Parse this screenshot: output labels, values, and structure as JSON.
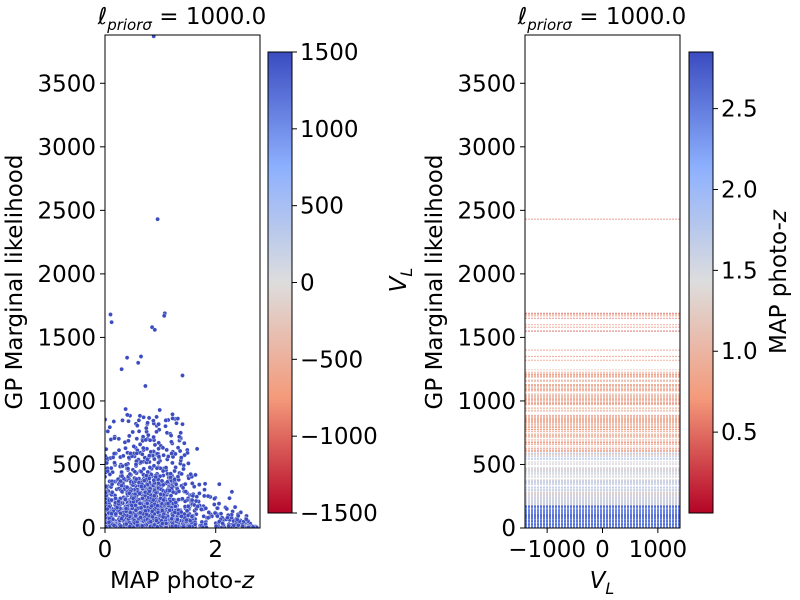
{
  "chart_data": [
    {
      "type": "scatter",
      "title_main": "ℓ",
      "title_sub": "priorσ",
      "title_tail": " = 1000.0",
      "xlabel_main": "MAP photo-",
      "xlabel_italic": "z",
      "ylabel": "GP Marginal likelihood",
      "xlim": [
        0,
        2.8
      ],
      "ylim": [
        0,
        3880
      ],
      "x_ticks": [
        0,
        2
      ],
      "x_tick_labels": [
        "0",
        "2"
      ],
      "y_ticks": [
        0,
        500,
        1000,
        1500,
        2000,
        2500,
        3000,
        3500
      ],
      "y_tick_labels": [
        "0",
        "500",
        "1000",
        "1500",
        "2000",
        "2500",
        "3000",
        "3500"
      ],
      "marker_color": "#3b4cc0",
      "outliers": [
        [
          0.1,
          1680
        ],
        [
          0.12,
          1620
        ],
        [
          0.85,
          1580
        ],
        [
          0.9,
          1560
        ],
        [
          1.08,
          1690
        ],
        [
          1.07,
          1670
        ],
        [
          0.95,
          2430
        ],
        [
          0.65,
          1350
        ],
        [
          0.4,
          1340
        ],
        [
          0.3,
          1250
        ],
        [
          0.6,
          1300
        ],
        [
          1.4,
          1200
        ],
        [
          0.05,
          760
        ],
        [
          0.88,
          3870
        ]
      ],
      "colorbar": {
        "cmap": "coolwarm",
        "ticks": [
          1500,
          1000,
          500,
          0,
          -500,
          -1000,
          -1500
        ],
        "tick_labels": [
          "1500",
          "1000",
          "500",
          "0",
          "−500",
          "−1000",
          "−1500"
        ],
        "range": [
          -1500,
          1500
        ]
      }
    },
    {
      "type": "scatter",
      "title_main": "ℓ",
      "title_sub": "priorσ",
      "title_tail": " = 1000.0",
      "xlabel_main": "V",
      "xlabel_sub": "L",
      "ylabel": "GP Marginal likelihood",
      "ylabel_inner_main": "V",
      "ylabel_inner_sub": "L",
      "xlim": [
        -1400,
        1400
      ],
      "ylim": [
        0,
        3880
      ],
      "x_ticks": [
        -1000,
        0,
        1000
      ],
      "x_tick_labels": [
        "−1000",
        "0",
        "1000"
      ],
      "y_ticks": [
        0,
        500,
        1000,
        1500,
        2000,
        2500,
        3000,
        3500
      ],
      "y_tick_labels": [
        "0",
        "500",
        "1000",
        "1500",
        "2000",
        "2500",
        "3000",
        "3500"
      ],
      "colorbar": {
        "cmap": "coolwarm_r",
        "label": "MAP photo-",
        "label_italic": "z",
        "ticks": [
          2.5,
          2.0,
          1.5,
          1.0,
          0.5
        ],
        "tick_labels": [
          "2.5",
          "2.0",
          "1.5",
          "1.0",
          "0.5"
        ],
        "range": [
          0.0,
          2.85
        ]
      }
    }
  ]
}
